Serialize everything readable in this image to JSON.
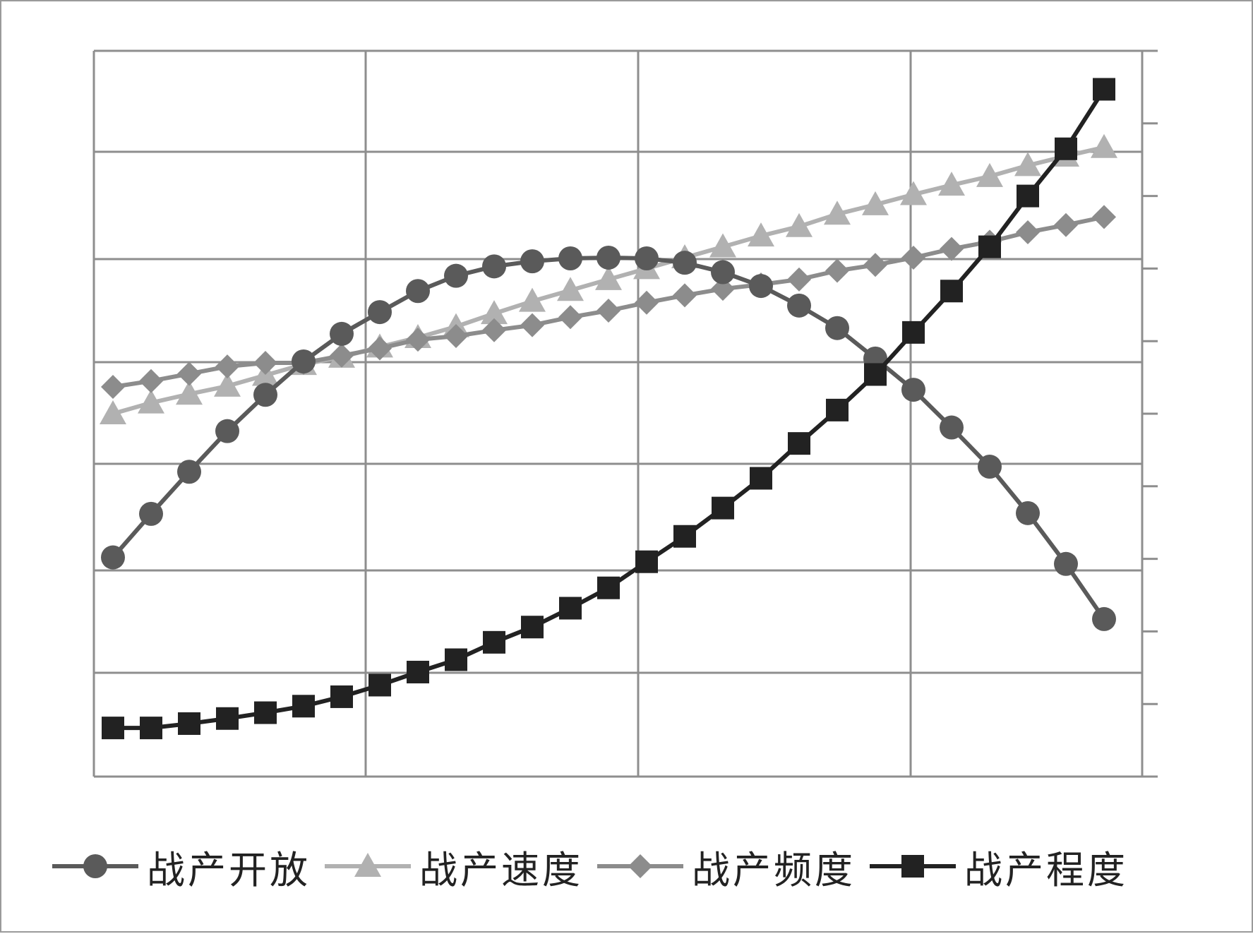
{
  "chart_data": {
    "type": "line",
    "title": "",
    "xlabel": "",
    "ylabel": "",
    "grid": true,
    "legend_position": "bottom",
    "x": [
      1,
      2,
      3,
      4,
      5,
      6,
      7,
      8,
      9,
      10,
      11,
      12,
      13,
      14,
      15,
      16,
      17,
      18,
      19,
      20,
      21,
      22,
      23,
      24,
      25,
      26,
      27
    ],
    "xlim": [
      0.5,
      28
    ],
    "ylim": [
      0,
      100
    ],
    "series": [
      {
        "name": "战产开放",
        "marker": "circle",
        "color": "#5a5a5a",
        "values": [
          30.2,
          36.2,
          42.0,
          47.6,
          52.6,
          57.2,
          61.0,
          64.0,
          66.9,
          69.0,
          70.3,
          71.0,
          71.4,
          71.5,
          71.4,
          70.8,
          69.5,
          67.6,
          64.9,
          61.8,
          57.6,
          53.3,
          48.1,
          42.7,
          36.3,
          29.3,
          21.7
        ]
      },
      {
        "name": "战产速度",
        "marker": "triangle",
        "color": "#b1b1b1",
        "values": [
          50.0,
          51.5,
          52.7,
          53.8,
          55.3,
          56.8,
          57.8,
          59.2,
          60.5,
          62.0,
          63.8,
          65.5,
          67.0,
          68.5,
          70.0,
          71.5,
          73.0,
          74.5,
          75.8,
          77.5,
          78.8,
          80.2,
          81.5,
          82.7,
          84.2,
          85.5,
          86.7
        ]
      },
      {
        "name": "战产频度",
        "marker": "diamond",
        "color": "#8c8c8c",
        "values": [
          53.7,
          54.5,
          55.5,
          56.5,
          57.0,
          57.0,
          58.0,
          59.0,
          60.2,
          60.7,
          61.5,
          62.2,
          63.3,
          64.2,
          65.3,
          66.3,
          67.2,
          67.8,
          68.5,
          69.7,
          70.5,
          71.5,
          72.7,
          73.7,
          75.0,
          76.0,
          77.1
        ]
      },
      {
        "name": "战产程度",
        "marker": "square",
        "color": "#222222",
        "values": [
          6.7,
          6.7,
          7.3,
          8.0,
          8.8,
          9.7,
          11.0,
          12.6,
          14.4,
          16.1,
          18.5,
          20.6,
          23.2,
          26.0,
          29.6,
          33.1,
          37.0,
          41.1,
          45.9,
          50.5,
          55.4,
          61.2,
          66.9,
          73.0,
          80.0,
          86.5,
          94.7
        ]
      }
    ]
  }
}
